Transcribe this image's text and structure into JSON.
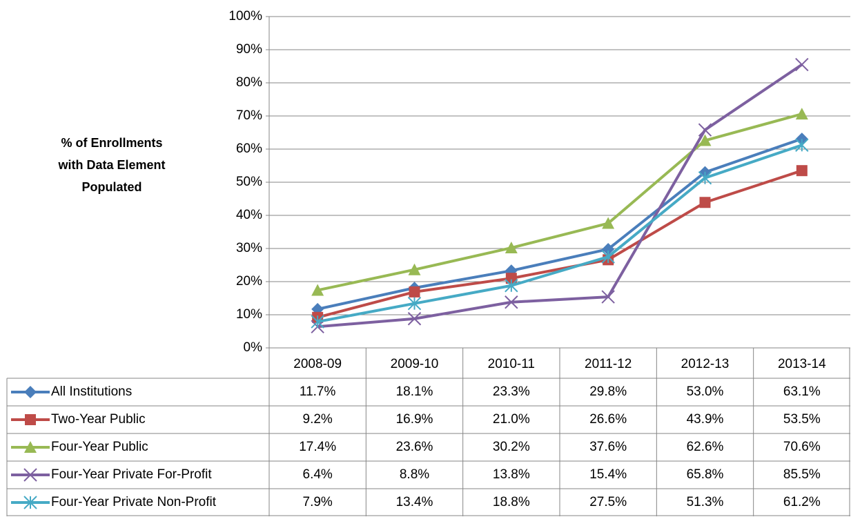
{
  "chart_data": {
    "type": "line",
    "ylabel": [
      "% of Enrollments",
      "with Data Element",
      "Populated"
    ],
    "categories": [
      "2008-09",
      "2009-10",
      "2010-11",
      "2011-12",
      "2012-13",
      "2013-14"
    ],
    "ylim": [
      0,
      100
    ],
    "yticks": [
      {
        "value": 0,
        "label": "0%"
      },
      {
        "value": 10,
        "label": "10%"
      },
      {
        "value": 20,
        "label": "20%"
      },
      {
        "value": 30,
        "label": "30%"
      },
      {
        "value": 40,
        "label": "40%"
      },
      {
        "value": 50,
        "label": "50%"
      },
      {
        "value": 60,
        "label": "60%"
      },
      {
        "value": 70,
        "label": "70%"
      },
      {
        "value": 80,
        "label": "80%"
      },
      {
        "value": 90,
        "label": "90%"
      },
      {
        "value": 100,
        "label": "100%"
      }
    ],
    "grid": true,
    "series": [
      {
        "name": "All Institutions",
        "color": "#4a7ebb",
        "marker": "diamond",
        "values": [
          11.7,
          18.1,
          23.3,
          29.8,
          53.0,
          63.1
        ],
        "value_labels": [
          "11.7%",
          "18.1%",
          "23.3%",
          "29.8%",
          "53.0%",
          "63.1%"
        ]
      },
      {
        "name": "Two-Year Public",
        "color": "#be4b48",
        "marker": "square",
        "values": [
          9.2,
          16.9,
          21.0,
          26.6,
          43.9,
          53.5
        ],
        "value_labels": [
          "9.2%",
          "16.9%",
          "21.0%",
          "26.6%",
          "43.9%",
          "53.5%"
        ]
      },
      {
        "name": "Four-Year Public",
        "color": "#98b954",
        "marker": "triangle",
        "values": [
          17.4,
          23.6,
          30.2,
          37.6,
          62.6,
          70.6
        ],
        "value_labels": [
          "17.4%",
          "23.6%",
          "30.2%",
          "37.6%",
          "62.6%",
          "70.6%"
        ]
      },
      {
        "name": "Four-Year Private For-Profit",
        "color": "#7d60a0",
        "marker": "x",
        "values": [
          6.4,
          8.8,
          13.8,
          15.4,
          65.8,
          85.5
        ],
        "value_labels": [
          "6.4%",
          "8.8%",
          "13.8%",
          "15.4%",
          "65.8%",
          "85.5%"
        ]
      },
      {
        "name": "Four-Year Private Non-Profit",
        "color": "#46aac5",
        "marker": "star",
        "values": [
          7.9,
          13.4,
          18.8,
          27.5,
          51.3,
          61.2
        ],
        "value_labels": [
          "7.9%",
          "13.4%",
          "18.8%",
          "27.5%",
          "51.3%",
          "61.2%"
        ]
      }
    ]
  }
}
